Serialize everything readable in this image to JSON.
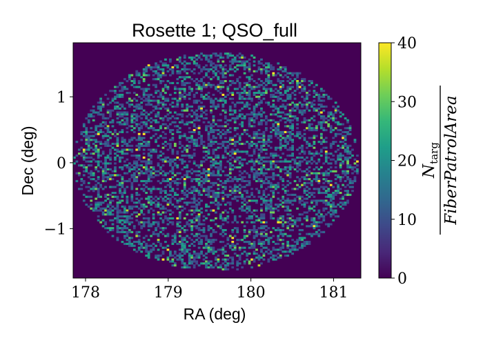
{
  "chart_data": {
    "type": "heatmap",
    "title": "Rosette 1; QSO_full",
    "xlabel": "RA (deg)",
    "ylabel": "Dec (deg)",
    "xlim": [
      177.85,
      181.33
    ],
    "ylim": [
      -1.75,
      1.82
    ],
    "xticks": [
      {
        "value": 178,
        "label": "178"
      },
      {
        "value": 179,
        "label": "179"
      },
      {
        "value": 180,
        "label": "180"
      },
      {
        "value": 181,
        "label": "181"
      }
    ],
    "yticks": [
      {
        "value": 1,
        "label": "1"
      },
      {
        "value": 0,
        "label": "0"
      },
      {
        "value": -1,
        "label": "−1"
      }
    ],
    "footprint": {
      "center": [
        179.58,
        0.02
      ],
      "radius_ra": 1.72,
      "radius_dec": 1.66
    },
    "grid_bins": [
      120,
      120
    ],
    "grid": false,
    "colorbar": {
      "min": 0,
      "max": 40,
      "ticks": [
        {
          "value": 0,
          "label": "0"
        },
        {
          "value": 10,
          "label": "10"
        },
        {
          "value": 20,
          "label": "20"
        },
        {
          "value": 30,
          "label": "30"
        },
        {
          "value": 40,
          "label": "40"
        }
      ],
      "label_numerator": "N",
      "label_numerator_sub": "targ",
      "label_denominator": "FiberPatrolArea",
      "colormap": "viridis",
      "colors": [
        "#440154",
        "#482878",
        "#3e4989",
        "#31688e",
        "#26828e",
        "#1f9e89",
        "#35b779",
        "#6ece58",
        "#b5de2b",
        "#fde725"
      ]
    }
  }
}
